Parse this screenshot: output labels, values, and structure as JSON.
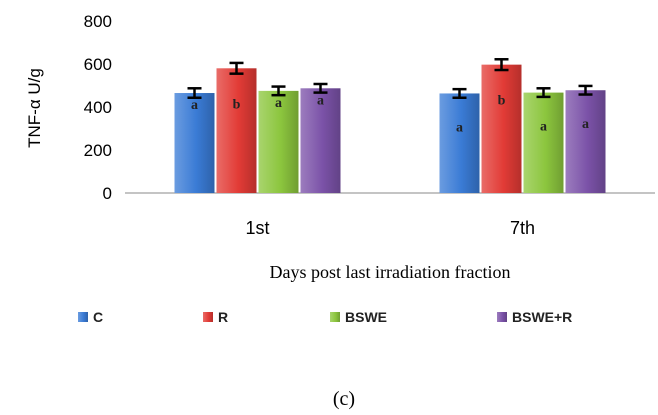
{
  "chart_data": {
    "type": "bar",
    "categories": [
      "1st",
      "7th"
    ],
    "series": [
      {
        "name": "C",
        "color": "#3a7bd5",
        "values": [
          465,
          463
        ],
        "errors": [
          22,
          20
        ],
        "labels": [
          "a",
          "a"
        ]
      },
      {
        "name": "R",
        "color": "#e23b36",
        "values": [
          580,
          597
        ],
        "errors": [
          25,
          25
        ],
        "labels": [
          "b",
          "b"
        ]
      },
      {
        "name": "BSWE",
        "color": "#8cc63e",
        "values": [
          475,
          467
        ],
        "errors": [
          20,
          20
        ],
        "labels": [
          "a",
          "a"
        ]
      },
      {
        "name": "BSWE+R",
        "color": "#7b52a8",
        "values": [
          487,
          478
        ],
        "errors": [
          20,
          20
        ],
        "labels": [
          "a",
          "a"
        ]
      }
    ],
    "ylabel": "TNF-α  U/g",
    "xlabel": "Days  post  last irradiation  fraction",
    "ylim": [
      0,
      800
    ],
    "yticks": [
      0,
      200,
      400,
      600,
      800
    ],
    "legend_position": "bottom",
    "panel_label": "(c)"
  }
}
